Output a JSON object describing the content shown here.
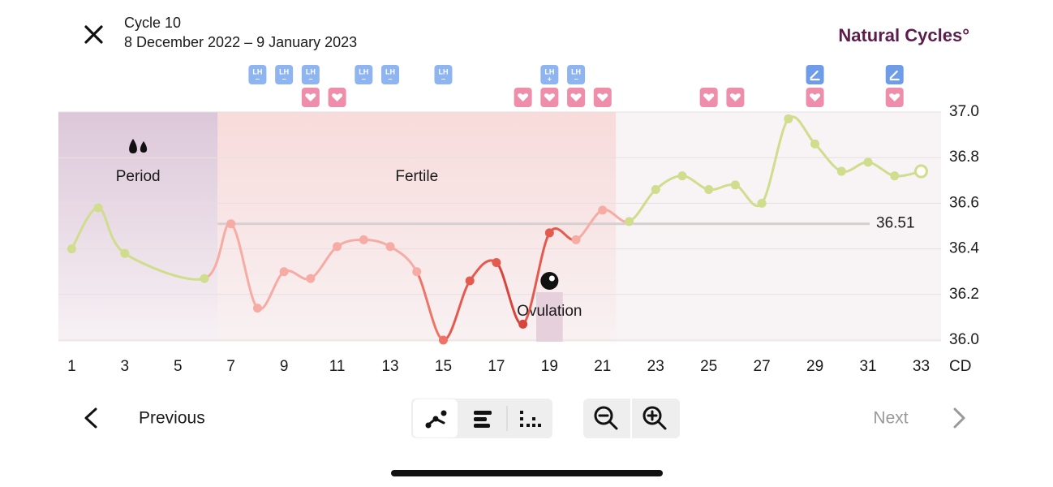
{
  "header": {
    "cycle": "Cycle 10",
    "dates": "8 December 2022 – 9 January 2023",
    "brand": "Natural Cycles°"
  },
  "chart_data": {
    "type": "line",
    "x": [
      1,
      2,
      3,
      6,
      7,
      8,
      9,
      10,
      11,
      12,
      13,
      14,
      15,
      16,
      17,
      18,
      19,
      20,
      21,
      22,
      23,
      24,
      25,
      26,
      27,
      28,
      29,
      30,
      31,
      32,
      33
    ],
    "values": [
      36.4,
      36.58,
      36.38,
      36.27,
      36.51,
      36.14,
      36.3,
      36.27,
      36.41,
      36.44,
      36.41,
      36.3,
      36.0,
      36.26,
      36.34,
      36.07,
      36.47,
      36.44,
      36.57,
      36.52,
      36.66,
      36.72,
      36.66,
      36.68,
      36.6,
      36.97,
      36.86,
      36.74,
      36.78,
      36.72,
      36.74
    ],
    "point_colors": [
      "#cfdd8c",
      "#cfdd8c",
      "#cfdd8c",
      "#cfdd8c",
      "#f6aca4",
      "#f6aca4",
      "#f6aca4",
      "#f6aca4",
      "#f6aca4",
      "#f6aca4",
      "#f6aca4",
      "#f6aca4",
      "#ef7468",
      "#e45a4f",
      "#e45a4f",
      "#d8453c",
      "#e45a4f",
      "#f6aca4",
      "#f6aca4",
      "#cfdd8c",
      "#cfdd8c",
      "#cfdd8c",
      "#cfdd8c",
      "#cfdd8c",
      "#cfdd8c",
      "#cfdd8c",
      "#cfdd8c",
      "#cfdd8c",
      "#cfdd8c",
      "#cfdd8c",
      "#cfdd8c"
    ],
    "last_point_open": true,
    "xlim": [
      0.5,
      33.75
    ],
    "ylim": [
      36,
      37
    ],
    "xticks": [
      1,
      3,
      5,
      7,
      9,
      11,
      13,
      15,
      17,
      19,
      21,
      23,
      25,
      27,
      29,
      31,
      33
    ],
    "x_unit_label": "CD",
    "yticks": [
      {
        "value": 36,
        "label": "36.0"
      },
      36.2,
      36.4,
      36.6,
      36.8,
      {
        "value": 37,
        "label": "37.0"
      }
    ],
    "grid": true,
    "cover_line": {
      "value": 36.51
    },
    "zones": [
      {
        "label": "Period",
        "start": 0.5,
        "end": 6.5,
        "color": "#dcc7d9"
      },
      {
        "label": "Fertile",
        "start": 6.5,
        "end": 21.5,
        "color": "#f8dbdb"
      }
    ],
    "ovulation": {
      "label": "Ovulation",
      "start": 18.5,
      "end": 19.5
    },
    "lh_tests": {
      "label": "LH",
      "days": [
        8,
        9,
        10,
        12,
        13,
        15,
        19,
        20
      ],
      "results": [
        "−",
        "−",
        "−",
        "−",
        "−",
        "−",
        "+",
        "−"
      ]
    },
    "sex_days": [
      10,
      11,
      18,
      19,
      20,
      21,
      25,
      26,
      29,
      32
    ],
    "note_days": [
      29,
      32
    ]
  },
  "nav": {
    "previous": "Previous",
    "next": "Next"
  }
}
